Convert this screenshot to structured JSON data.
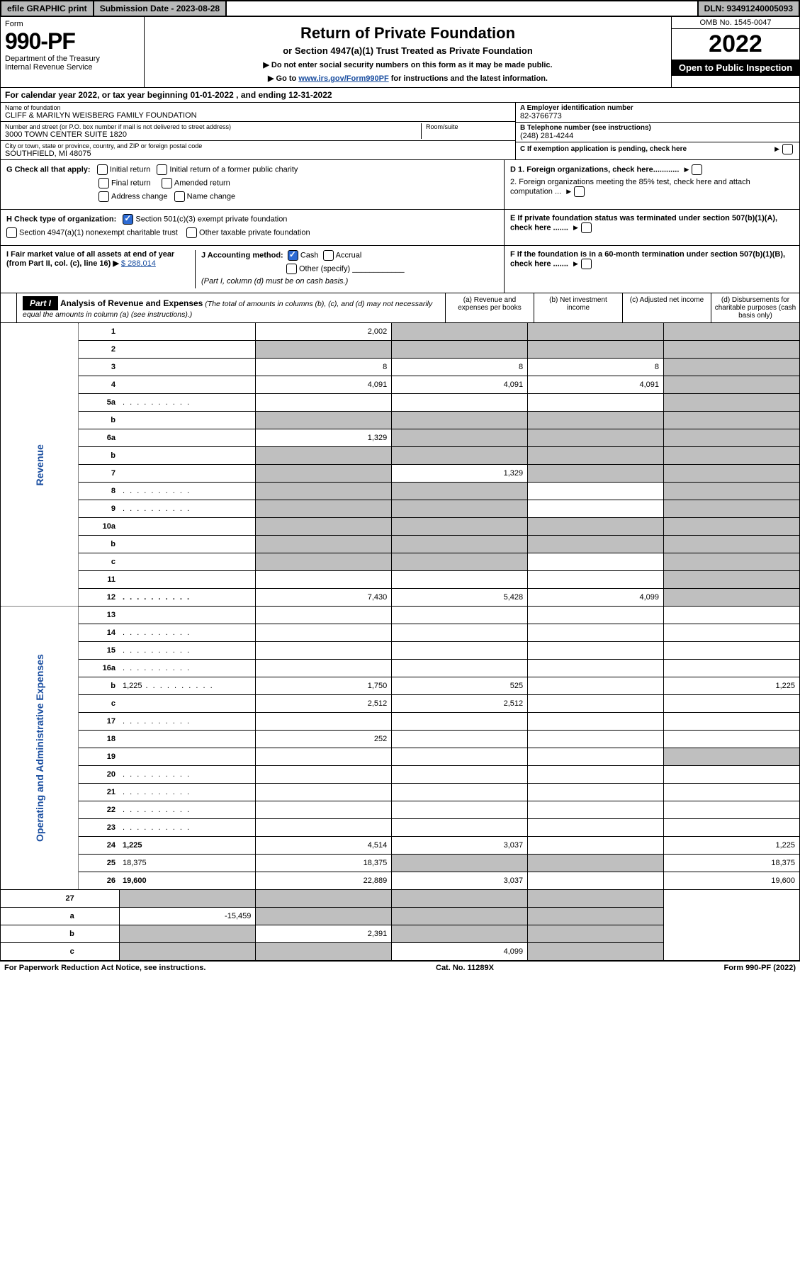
{
  "topbar": {
    "efile": "efile GRAPHIC print",
    "subdate": "Submission Date - 2023-08-28",
    "dln": "DLN: 93491240005093"
  },
  "header": {
    "form_label": "Form",
    "form_no": "990-PF",
    "dept1": "Department of the Treasury",
    "dept2": "Internal Revenue Service",
    "title": "Return of Private Foundation",
    "subtitle": "or Section 4947(a)(1) Trust Treated as Private Foundation",
    "note1": "▶ Do not enter social security numbers on this form as it may be made public.",
    "note2_pre": "▶ Go to ",
    "note2_link": "www.irs.gov/Form990PF",
    "note2_post": " for instructions and the latest information.",
    "omb": "OMB No. 1545-0047",
    "year": "2022",
    "open": "Open to Public Inspection"
  },
  "calendar": "For calendar year 2022, or tax year beginning 01-01-2022          , and ending 12-31-2022",
  "ident": {
    "name_label": "Name of foundation",
    "name_val": "CLIFF & MARILYN WEISBERG FAMILY FOUNDATION",
    "addr_label": "Number and street (or P.O. box number if mail is not delivered to street address)",
    "addr_val": "3000 TOWN CENTER SUITE 1820",
    "room_label": "Room/suite",
    "city_label": "City or town, state or province, country, and ZIP or foreign postal code",
    "city_val": "SOUTHFIELD, MI  48075",
    "a_label": "A Employer identification number",
    "a_val": "82-3766773",
    "b_label": "B Telephone number (see instructions)",
    "b_val": "(248) 281-4244",
    "c_label": "C If exemption application is pending, check here"
  },
  "g": {
    "label": "G Check all that apply:",
    "o1": "Initial return",
    "o2": "Initial return of a former public charity",
    "o3": "Final return",
    "o4": "Amended return",
    "o5": "Address change",
    "o6": "Name change"
  },
  "h": {
    "label": "H Check type of organization:",
    "o1": "Section 501(c)(3) exempt private foundation",
    "o2": "Section 4947(a)(1) nonexempt charitable trust",
    "o3": "Other taxable private foundation"
  },
  "i": {
    "label": "I Fair market value of all assets at end of year (from Part II, col. (c), line 16) ▶",
    "val": "$  288,014"
  },
  "j": {
    "label": "J Accounting method:",
    "o1": "Cash",
    "o2": "Accrual",
    "o3": "Other (specify)",
    "note": "(Part I, column (d) must be on cash basis.)"
  },
  "d": {
    "d1": "D 1. Foreign organizations, check here............",
    "d2": "2. Foreign organizations meeting the 85% test, check here and attach computation ...",
    "e": "E  If private foundation status was terminated under section 507(b)(1)(A), check here .......",
    "f": "F  If the foundation is in a 60-month termination under section 507(b)(1)(B), check here ......."
  },
  "part1": {
    "label": "Part I",
    "title": "Analysis of Revenue and Expenses",
    "note": " (The total of amounts in columns (b), (c), and (d) may not necessarily equal the amounts in column (a) (see instructions).)",
    "col_a": "(a)  Revenue and expenses per books",
    "col_b": "(b)  Net investment income",
    "col_c": "(c)  Adjusted net income",
    "col_d": "(d)  Disbursements for charitable purposes (cash basis only)"
  },
  "side": {
    "rev": "Revenue",
    "exp": "Operating and Administrative Expenses"
  },
  "rows": [
    {
      "n": "1",
      "d": "",
      "a": "2,002",
      "b": "",
      "c": "",
      "ga": false,
      "gb": true,
      "gc": true,
      "gd": true
    },
    {
      "n": "2",
      "d": "",
      "a": "",
      "b": "",
      "c": "",
      "ga": true,
      "gb": true,
      "gc": true,
      "gd": true,
      "bold_not": true
    },
    {
      "n": "3",
      "d": "",
      "a": "8",
      "b": "8",
      "c": "8",
      "gd": true
    },
    {
      "n": "4",
      "d": "",
      "a": "4,091",
      "b": "4,091",
      "c": "4,091",
      "gd": true
    },
    {
      "n": "5a",
      "d": "",
      "a": "",
      "b": "",
      "c": "",
      "gd": true,
      "dots": true
    },
    {
      "n": "b",
      "d": "",
      "a": "",
      "b": "",
      "c": "",
      "ga": true,
      "gb": true,
      "gc": true,
      "gd": true,
      "inline_blank": true
    },
    {
      "n": "6a",
      "d": "",
      "a": "1,329",
      "b": "",
      "c": "",
      "gb": true,
      "gc": true,
      "gd": true
    },
    {
      "n": "b",
      "d": "",
      "a": "",
      "b": "",
      "c": "",
      "ga": true,
      "gb": true,
      "gc": true,
      "gd": true
    },
    {
      "n": "7",
      "d": "",
      "a": "",
      "b": "1,329",
      "c": "",
      "ga": true,
      "gc": true,
      "gd": true
    },
    {
      "n": "8",
      "d": "",
      "a": "",
      "b": "",
      "c": "",
      "ga": true,
      "gb": true,
      "gd": true,
      "dots": true
    },
    {
      "n": "9",
      "d": "",
      "a": "",
      "b": "",
      "c": "",
      "ga": true,
      "gb": true,
      "gd": true,
      "dots": true
    },
    {
      "n": "10a",
      "d": "",
      "a": "",
      "b": "",
      "c": "",
      "ga": true,
      "gb": true,
      "gc": true,
      "gd": true,
      "inline_blank": true
    },
    {
      "n": "b",
      "d": "",
      "a": "",
      "b": "",
      "c": "",
      "ga": true,
      "gb": true,
      "gc": true,
      "gd": true,
      "inline_blank": true
    },
    {
      "n": "c",
      "d": "",
      "a": "",
      "b": "",
      "c": "",
      "ga": true,
      "gb": true,
      "gd": true
    },
    {
      "n": "11",
      "d": "",
      "a": "",
      "b": "",
      "c": "",
      "gd": true
    },
    {
      "n": "12",
      "d": "",
      "a": "7,430",
      "b": "5,428",
      "c": "4,099",
      "gd": true,
      "bold": true,
      "dots": true
    }
  ],
  "exp_rows": [
    {
      "n": "13",
      "d": "",
      "a": "",
      "b": "",
      "c": ""
    },
    {
      "n": "14",
      "d": "",
      "a": "",
      "b": "",
      "c": "",
      "dots": true
    },
    {
      "n": "15",
      "d": "",
      "a": "",
      "b": "",
      "c": "",
      "dots": true
    },
    {
      "n": "16a",
      "d": "",
      "a": "",
      "b": "",
      "c": "",
      "dots": true
    },
    {
      "n": "b",
      "d": "1,225",
      "a": "1,750",
      "b": "525",
      "c": "",
      "dots": true
    },
    {
      "n": "c",
      "d": "",
      "a": "2,512",
      "b": "2,512",
      "c": ""
    },
    {
      "n": "17",
      "d": "",
      "a": "",
      "b": "",
      "c": "",
      "dots": true
    },
    {
      "n": "18",
      "d": "",
      "a": "252",
      "b": "",
      "c": ""
    },
    {
      "n": "19",
      "d": "",
      "a": "",
      "b": "",
      "c": "",
      "gd": true
    },
    {
      "n": "20",
      "d": "",
      "a": "",
      "b": "",
      "c": "",
      "dots": true
    },
    {
      "n": "21",
      "d": "",
      "a": "",
      "b": "",
      "c": "",
      "dots": true
    },
    {
      "n": "22",
      "d": "",
      "a": "",
      "b": "",
      "c": "",
      "dots": true
    },
    {
      "n": "23",
      "d": "",
      "a": "",
      "b": "",
      "c": "",
      "dots": true
    },
    {
      "n": "24",
      "d": "1,225",
      "a": "4,514",
      "b": "3,037",
      "c": "",
      "bold": true
    },
    {
      "n": "25",
      "d": "18,375",
      "a": "18,375",
      "b": "",
      "c": "",
      "gb": true,
      "gc": true
    },
    {
      "n": "26",
      "d": "19,600",
      "a": "22,889",
      "b": "3,037",
      "c": "",
      "bold": true
    }
  ],
  "bottom_rows": [
    {
      "n": "27",
      "d": "",
      "a": "",
      "b": "",
      "c": "",
      "ga": true,
      "gb": true,
      "gc": true,
      "gd": true
    },
    {
      "n": "a",
      "d": "",
      "a": "-15,459",
      "b": "",
      "c": "",
      "gb": true,
      "gc": true,
      "gd": true,
      "bold": true
    },
    {
      "n": "b",
      "d": "",
      "a": "",
      "b": "2,391",
      "c": "",
      "ga": true,
      "gc": true,
      "gd": true,
      "bold": true
    },
    {
      "n": "c",
      "d": "",
      "a": "",
      "b": "",
      "c": "4,099",
      "ga": true,
      "gb": true,
      "gd": true,
      "bold": true
    }
  ],
  "footer": {
    "left": "For Paperwork Reduction Act Notice, see instructions.",
    "mid": "Cat. No. 11289X",
    "right": "Form 990-PF (2022)"
  }
}
